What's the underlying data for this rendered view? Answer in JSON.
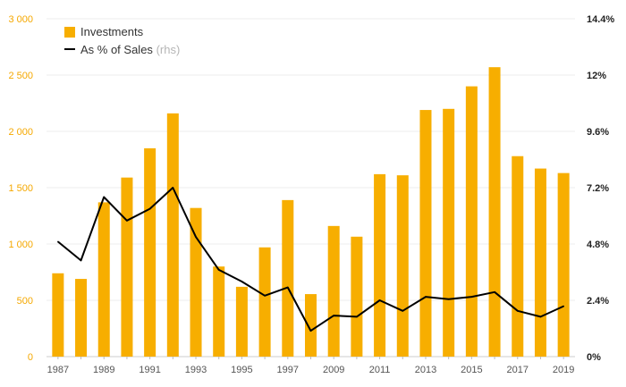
{
  "chart_data": {
    "type": "bar",
    "categories": [
      "1987",
      "1988",
      "1989",
      "1990",
      "1991",
      "1992",
      "1993",
      "1994",
      "1995",
      "1996",
      "1997",
      "1998",
      "2009",
      "2010",
      "2011",
      "2012",
      "2013",
      "2014",
      "2015",
      "2016",
      "2017",
      "2018",
      "2019"
    ],
    "x_tick_labels": [
      "1987",
      "",
      "1989",
      "",
      "1991",
      "",
      "1993",
      "",
      "1995",
      "",
      "1997",
      "",
      "2009",
      "",
      "2011",
      "",
      "2013",
      "",
      "2015",
      "",
      "2017",
      "",
      "2019"
    ],
    "series": [
      {
        "name": "Investments",
        "type": "bar",
        "axis": "left",
        "color": "#f7ae00",
        "values": [
          740,
          690,
          1370,
          1590,
          1850,
          2160,
          1320,
          800,
          620,
          970,
          1390,
          555,
          1160,
          1065,
          1620,
          1610,
          2190,
          2200,
          2400,
          2570,
          1780,
          1670,
          1630
        ]
      },
      {
        "name": "As % of Sales",
        "name_suffix": "(rhs)",
        "type": "line",
        "axis": "right",
        "color": "#000000",
        "values": [
          4.9,
          4.1,
          6.8,
          5.8,
          6.3,
          7.2,
          5.1,
          3.7,
          3.2,
          2.6,
          2.95,
          1.1,
          1.75,
          1.7,
          2.4,
          1.95,
          2.55,
          2.45,
          2.55,
          2.75,
          1.95,
          1.7,
          2.15
        ]
      }
    ],
    "y_left": {
      "ylim": [
        0,
        3000
      ],
      "tick_labels": [
        "0",
        "500",
        "1 000",
        "1 500",
        "2 000",
        "2 500",
        "3 000"
      ],
      "tick_values": [
        0,
        500,
        1000,
        1500,
        2000,
        2500,
        3000
      ],
      "color": "#f5a800"
    },
    "y_right": {
      "ylim": [
        0,
        14.4
      ],
      "tick_labels": [
        "0%",
        "2.4%",
        "4.8%",
        "7.2%",
        "9.6%",
        "12%",
        "14.4%"
      ],
      "tick_values": [
        0,
        2.4,
        4.8,
        7.2,
        9.6,
        12,
        14.4
      ]
    },
    "grid": true,
    "legend_position": "top-left",
    "title": "",
    "xlabel": "",
    "ylabel": ""
  }
}
